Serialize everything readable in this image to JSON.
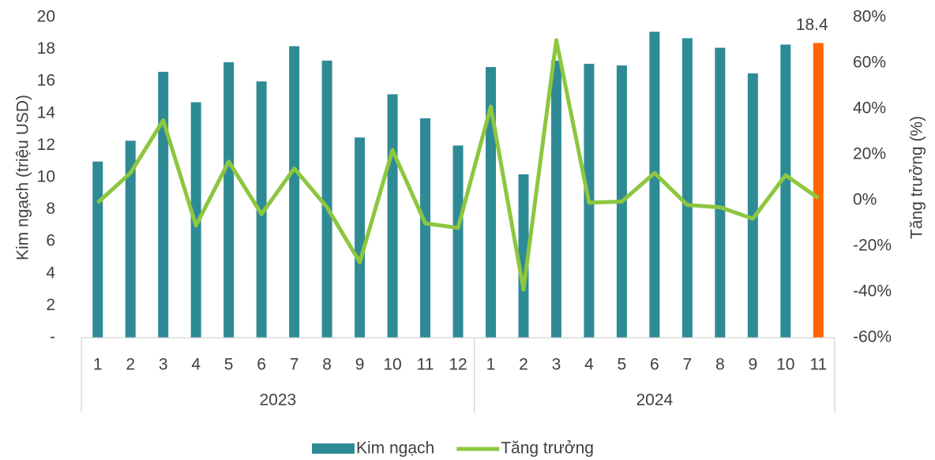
{
  "chart_data": {
    "type": "bar-line",
    "categories": [
      "1",
      "2",
      "3",
      "4",
      "5",
      "6",
      "7",
      "8",
      "9",
      "10",
      "11",
      "12",
      "1",
      "2",
      "3",
      "4",
      "5",
      "6",
      "7",
      "8",
      "9",
      "10",
      "11"
    ],
    "category_groups": [
      {
        "label": "2023",
        "size": 12
      },
      {
        "label": "2024",
        "size": 11
      }
    ],
    "series": [
      {
        "name": "Kim ngạch",
        "type": "bar",
        "axis": "y",
        "color": "#2e8b96",
        "colors": [
          "#2e8b96",
          "#2e8b96",
          "#2e8b96",
          "#2e8b96",
          "#2e8b96",
          "#2e8b96",
          "#2e8b96",
          "#2e8b96",
          "#2e8b96",
          "#2e8b96",
          "#2e8b96",
          "#2e8b96",
          "#2e8b96",
          "#2e8b96",
          "#2e8b96",
          "#2e8b96",
          "#2e8b96",
          "#2e8b96",
          "#2e8b96",
          "#2e8b96",
          "#2e8b96",
          "#2e8b96",
          "#ff6600"
        ],
        "values": [
          11.0,
          12.3,
          16.6,
          14.7,
          17.2,
          16.0,
          18.2,
          17.3,
          12.5,
          15.2,
          13.7,
          12.0,
          16.9,
          10.2,
          17.3,
          17.1,
          17.0,
          19.1,
          18.7,
          18.1,
          16.5,
          18.3,
          18.4
        ],
        "value_labels": [
          null,
          null,
          null,
          null,
          null,
          null,
          null,
          null,
          null,
          null,
          null,
          null,
          null,
          null,
          null,
          null,
          null,
          null,
          null,
          null,
          null,
          null,
          "18.4"
        ]
      },
      {
        "name": "Tăng trưởng",
        "type": "line",
        "axis": "y2",
        "color": "#8dc63f",
        "values": [
          -1,
          12,
          35,
          -11,
          17,
          -6,
          14,
          -3,
          -27,
          22,
          -10,
          -12,
          41,
          -39,
          70,
          -1,
          -0.5,
          12,
          -2,
          -3,
          -8,
          11,
          1
        ]
      }
    ],
    "ylabel": "Kim ngạch (triệu USD)",
    "y2label": "Tăng trưởng (%)",
    "ylim": [
      0,
      20
    ],
    "yticks": [
      {
        "value": 0,
        "label": "-"
      },
      2,
      4,
      6,
      8,
      10,
      12,
      14,
      16,
      18,
      20
    ],
    "y2lim": [
      -60,
      80
    ],
    "y2ticks": [
      {
        "value": -60,
        "label": "-60%"
      },
      {
        "value": -40,
        "label": "-40%"
      },
      {
        "value": -20,
        "label": "-20%"
      },
      {
        "value": 0,
        "label": "0%"
      },
      {
        "value": 20,
        "label": "20%"
      },
      {
        "value": 40,
        "label": "40%"
      },
      {
        "value": 60,
        "label": "60%"
      },
      {
        "value": 80,
        "label": "80%"
      }
    ],
    "grid": false,
    "legend": "bottom"
  }
}
